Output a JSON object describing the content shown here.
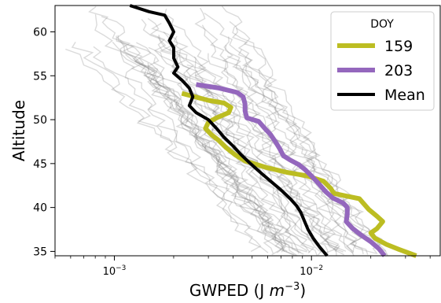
{
  "chart_data": {
    "type": "line",
    "title": "",
    "xlabel": "GWPED (J m^-3)",
    "xlabel_parts": {
      "base": "GWPED (J ",
      "m": "m",
      "exp": "−3",
      "close": ")"
    },
    "ylabel": "Altitude",
    "xscale": "log",
    "xlim": [
      0.0005,
      0.045
    ],
    "ylim": [
      34.5,
      63
    ],
    "x_ticks": [
      {
        "value": 0.001,
        "base": "10",
        "exp": "−3"
      },
      {
        "value": 0.01,
        "base": "10",
        "exp": "−2"
      }
    ],
    "y_ticks": [
      35,
      40,
      45,
      50,
      55,
      60
    ],
    "y_tick_labels": [
      "35",
      "40",
      "45",
      "50",
      "55",
      "60"
    ],
    "grid": false,
    "legend": {
      "title": "DOY",
      "placement": "top-right",
      "entries": [
        "159",
        "203",
        "Mean"
      ]
    },
    "series": [
      {
        "name": "159",
        "color": "#bcbd22",
        "points": [
          [
            0.0022,
            53.0
          ],
          [
            0.003,
            52.2
          ],
          [
            0.0036,
            51.9
          ],
          [
            0.0039,
            51.4
          ],
          [
            0.0038,
            50.8
          ],
          [
            0.0033,
            50.2
          ],
          [
            0.003,
            49.7
          ],
          [
            0.0029,
            49.0
          ],
          [
            0.0031,
            48.3
          ],
          [
            0.0034,
            47.6
          ],
          [
            0.0037,
            46.8
          ],
          [
            0.0041,
            46.0
          ],
          [
            0.0046,
            45.3
          ],
          [
            0.0058,
            44.6
          ],
          [
            0.0075,
            44.0
          ],
          [
            0.0095,
            43.6
          ],
          [
            0.0115,
            43.0
          ],
          [
            0.0125,
            42.2
          ],
          [
            0.013,
            41.6
          ],
          [
            0.015,
            41.3
          ],
          [
            0.0175,
            41.0
          ],
          [
            0.0195,
            39.8
          ],
          [
            0.0215,
            39.0
          ],
          [
            0.023,
            38.4
          ],
          [
            0.0215,
            37.6
          ],
          [
            0.02,
            37.1
          ],
          [
            0.021,
            36.5
          ],
          [
            0.024,
            35.8
          ],
          [
            0.028,
            35.2
          ],
          [
            0.034,
            34.5
          ]
        ]
      },
      {
        "name": "203",
        "color": "#9467bd",
        "points": [
          [
            0.0026,
            54.0
          ],
          [
            0.0034,
            53.6
          ],
          [
            0.0042,
            53.1
          ],
          [
            0.0045,
            52.6
          ],
          [
            0.0046,
            51.8
          ],
          [
            0.0046,
            51.0
          ],
          [
            0.0047,
            50.2
          ],
          [
            0.0054,
            49.8
          ],
          [
            0.0058,
            49.0
          ],
          [
            0.0062,
            48.3
          ],
          [
            0.0066,
            47.4
          ],
          [
            0.0069,
            46.7
          ],
          [
            0.0072,
            45.9
          ],
          [
            0.0078,
            45.4
          ],
          [
            0.0086,
            44.9
          ],
          [
            0.0093,
            44.3
          ],
          [
            0.01,
            43.6
          ],
          [
            0.0108,
            42.8
          ],
          [
            0.0118,
            41.8
          ],
          [
            0.0128,
            41.1
          ],
          [
            0.0145,
            40.5
          ],
          [
            0.0152,
            40.0
          ],
          [
            0.0152,
            39.2
          ],
          [
            0.015,
            38.4
          ],
          [
            0.0162,
            37.6
          ],
          [
            0.018,
            36.8
          ],
          [
            0.02,
            36.1
          ],
          [
            0.022,
            35.3
          ],
          [
            0.0235,
            34.5
          ]
        ]
      },
      {
        "name": "Mean",
        "color": "#000000",
        "points": [
          [
            0.0012,
            63.0
          ],
          [
            0.0015,
            62.3
          ],
          [
            0.0018,
            61.9
          ],
          [
            0.0019,
            61.0
          ],
          [
            0.002,
            60.0
          ],
          [
            0.0019,
            59.0
          ],
          [
            0.002,
            58.2
          ],
          [
            0.002,
            57.0
          ],
          [
            0.0021,
            56.0
          ],
          [
            0.002,
            55.3
          ],
          [
            0.0022,
            54.5
          ],
          [
            0.0024,
            53.6
          ],
          [
            0.0025,
            52.6
          ],
          [
            0.0024,
            51.6
          ],
          [
            0.0026,
            50.8
          ],
          [
            0.003,
            50.0
          ],
          [
            0.0033,
            49.0
          ],
          [
            0.0036,
            48.0
          ],
          [
            0.004,
            47.0
          ],
          [
            0.0044,
            46.0
          ],
          [
            0.0049,
            45.0
          ],
          [
            0.0055,
            44.0
          ],
          [
            0.0062,
            43.0
          ],
          [
            0.007,
            42.0
          ],
          [
            0.0078,
            41.0
          ],
          [
            0.0084,
            40.2
          ],
          [
            0.0088,
            39.5
          ],
          [
            0.0092,
            38.5
          ],
          [
            0.0096,
            37.5
          ],
          [
            0.0102,
            36.5
          ],
          [
            0.011,
            35.5
          ],
          [
            0.012,
            34.5
          ]
        ]
      }
    ],
    "background_profiles": {
      "color": "#888888",
      "count": 40,
      "x_range_at_top": [
        0.0006,
        0.0045
      ],
      "x_range_at_bottom": [
        0.004,
        0.03
      ]
    }
  }
}
